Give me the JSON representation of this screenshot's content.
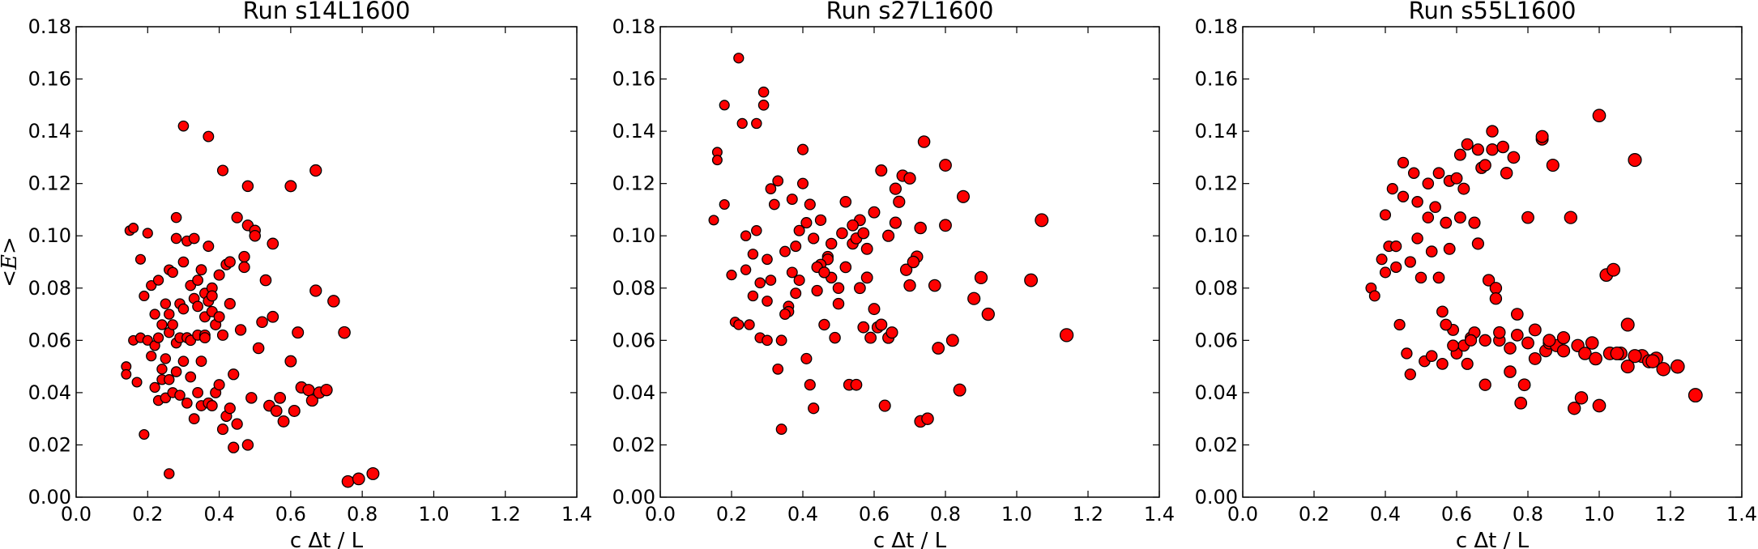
{
  "chart_data": [
    {
      "type": "scatter",
      "title": "Run s14L1600",
      "xlabel": "c Δt / L",
      "ylabel": "<E>",
      "xlim": [
        0.0,
        1.4
      ],
      "ylim": [
        0.0,
        0.18
      ],
      "xticks": [
        "0.0",
        "0.2",
        "0.4",
        "0.6",
        "0.8",
        "1.0",
        "1.2",
        "1.4"
      ],
      "yticks": [
        "0.00",
        "0.02",
        "0.04",
        "0.06",
        "0.08",
        "0.10",
        "0.12",
        "0.14",
        "0.16",
        "0.18"
      ],
      "grid": false,
      "marker_color": "#ff0000",
      "series": [
        {
          "x": [
            0.14,
            0.14,
            0.15,
            0.16,
            0.16,
            0.17,
            0.18,
            0.18,
            0.19,
            0.19,
            0.2,
            0.2,
            0.21,
            0.21,
            0.22,
            0.22,
            0.22,
            0.23,
            0.23,
            0.23,
            0.24,
            0.24,
            0.24,
            0.25,
            0.25,
            0.25,
            0.26,
            0.26,
            0.26,
            0.26,
            0.27,
            0.27,
            0.27,
            0.28,
            0.28,
            0.28,
            0.29,
            0.29,
            0.29,
            0.3,
            0.3,
            0.3,
            0.31,
            0.31,
            0.31,
            0.32,
            0.32,
            0.32,
            0.33,
            0.33,
            0.33,
            0.34,
            0.34,
            0.34,
            0.35,
            0.35,
            0.35,
            0.36,
            0.36,
            0.36,
            0.37,
            0.37,
            0.37,
            0.38,
            0.38,
            0.38,
            0.39,
            0.39,
            0.4,
            0.4,
            0.41,
            0.41,
            0.42,
            0.42,
            0.43,
            0.43,
            0.44,
            0.44,
            0.45,
            0.45,
            0.46,
            0.47,
            0.48,
            0.48,
            0.49,
            0.5,
            0.51,
            0.52,
            0.53,
            0.54,
            0.55,
            0.56,
            0.57,
            0.58,
            0.6,
            0.61,
            0.62,
            0.63,
            0.65,
            0.66,
            0.67,
            0.68,
            0.7,
            0.72,
            0.75,
            0.76,
            0.79,
            0.83,
            0.3,
            0.37,
            0.41,
            0.48,
            0.6,
            0.67,
            0.28,
            0.43,
            0.36,
            0.26,
            0.55,
            0.5,
            0.4,
            0.47,
            0.38,
            0.34
          ],
          "y": [
            0.05,
            0.047,
            0.102,
            0.06,
            0.103,
            0.044,
            0.061,
            0.091,
            0.024,
            0.077,
            0.101,
            0.06,
            0.054,
            0.081,
            0.058,
            0.042,
            0.07,
            0.037,
            0.083,
            0.061,
            0.049,
            0.066,
            0.045,
            0.074,
            0.038,
            0.053,
            0.009,
            0.087,
            0.063,
            0.045,
            0.04,
            0.066,
            0.086,
            0.107,
            0.059,
            0.048,
            0.074,
            0.061,
            0.039,
            0.09,
            0.052,
            0.072,
            0.061,
            0.036,
            0.098,
            0.081,
            0.06,
            0.046,
            0.03,
            0.076,
            0.099,
            0.062,
            0.04,
            0.073,
            0.087,
            0.052,
            0.035,
            0.078,
            0.069,
            0.062,
            0.075,
            0.036,
            0.096,
            0.08,
            0.071,
            0.035,
            0.066,
            0.04,
            0.043,
            0.085,
            0.026,
            0.062,
            0.031,
            0.089,
            0.034,
            0.09,
            0.047,
            0.019,
            0.107,
            0.028,
            0.064,
            0.092,
            0.02,
            0.104,
            0.038,
            0.102,
            0.057,
            0.067,
            0.083,
            0.035,
            0.069,
            0.033,
            0.038,
            0.029,
            0.052,
            0.033,
            0.063,
            0.042,
            0.041,
            0.037,
            0.079,
            0.04,
            0.041,
            0.075,
            0.063,
            0.006,
            0.007,
            0.009,
            0.142,
            0.138,
            0.125,
            0.119,
            0.119,
            0.125,
            0.099,
            0.074,
            0.061,
            0.07,
            0.097,
            0.1,
            0.069,
            0.088,
            0.077,
            0.083
          ]
        }
      ]
    },
    {
      "type": "scatter",
      "title": "Run s27L1600",
      "xlabel": "c Δt / L",
      "ylabel": "",
      "xlim": [
        0.0,
        1.4
      ],
      "ylim": [
        0.0,
        0.18
      ],
      "xticks": [
        "0.0",
        "0.2",
        "0.4",
        "0.6",
        "0.8",
        "1.0",
        "1.2",
        "1.4"
      ],
      "yticks": [
        "0.00",
        "0.02",
        "0.04",
        "0.06",
        "0.08",
        "0.10",
        "0.12",
        "0.14",
        "0.16",
        "0.18"
      ],
      "grid": false,
      "marker_color": "#ff0000",
      "series": [
        {
          "x": [
            0.15,
            0.16,
            0.16,
            0.18,
            0.18,
            0.2,
            0.21,
            0.22,
            0.23,
            0.24,
            0.25,
            0.26,
            0.27,
            0.28,
            0.29,
            0.3,
            0.3,
            0.31,
            0.32,
            0.33,
            0.34,
            0.35,
            0.36,
            0.37,
            0.38,
            0.39,
            0.4,
            0.41,
            0.42,
            0.43,
            0.44,
            0.45,
            0.46,
            0.47,
            0.48,
            0.49,
            0.5,
            0.51,
            0.52,
            0.53,
            0.54,
            0.55,
            0.56,
            0.57,
            0.58,
            0.59,
            0.6,
            0.61,
            0.62,
            0.63,
            0.64,
            0.65,
            0.66,
            0.67,
            0.68,
            0.69,
            0.7,
            0.72,
            0.73,
            0.74,
            0.75,
            0.77,
            0.78,
            0.8,
            0.82,
            0.84,
            0.85,
            0.88,
            0.9,
            0.92,
            1.04,
            1.07,
            1.14,
            0.22,
            0.29,
            0.3,
            0.27,
            0.24,
            0.4,
            0.33,
            0.47,
            0.43,
            0.71,
            0.73,
            0.8,
            0.62,
            0.56,
            0.52,
            0.45,
            0.38,
            0.36,
            0.26,
            0.31,
            0.41,
            0.48,
            0.5,
            0.44,
            0.55,
            0.6,
            0.39,
            0.35,
            0.42,
            0.46,
            0.28,
            0.34,
            0.37,
            0.54,
            0.57,
            0.66,
            0.64,
            0.7,
            0.58
          ],
          "y": [
            0.106,
            0.132,
            0.129,
            0.112,
            0.15,
            0.085,
            0.067,
            0.168,
            0.143,
            0.1,
            0.066,
            0.077,
            0.143,
            0.061,
            0.155,
            0.091,
            0.06,
            0.083,
            0.112,
            0.049,
            0.026,
            0.094,
            0.073,
            0.086,
            0.096,
            0.102,
            0.12,
            0.053,
            0.043,
            0.034,
            0.079,
            0.106,
            0.066,
            0.092,
            0.084,
            0.061,
            0.074,
            0.101,
            0.113,
            0.043,
            0.097,
            0.043,
            0.106,
            0.065,
            0.084,
            0.061,
            0.109,
            0.065,
            0.125,
            0.035,
            0.061,
            0.063,
            0.105,
            0.113,
            0.123,
            0.087,
            0.122,
            0.092,
            0.029,
            0.136,
            0.03,
            0.081,
            0.057,
            0.127,
            0.06,
            0.041,
            0.115,
            0.076,
            0.084,
            0.07,
            0.083,
            0.106,
            0.062,
            0.066,
            0.15,
            0.075,
            0.102,
            0.087,
            0.133,
            0.121,
            0.091,
            0.099,
            0.09,
            0.103,
            0.104,
            0.066,
            0.08,
            0.088,
            0.089,
            0.078,
            0.071,
            0.093,
            0.118,
            0.105,
            0.097,
            0.08,
            0.088,
            0.099,
            0.072,
            0.083,
            0.07,
            0.112,
            0.086,
            0.082,
            0.06,
            0.114,
            0.104,
            0.101,
            0.118,
            0.1,
            0.081,
            0.095
          ]
        }
      ]
    },
    {
      "type": "scatter",
      "title": "Run s55L1600",
      "xlabel": "c Δt / L",
      "ylabel": "",
      "xlim": [
        0.0,
        1.4
      ],
      "ylim": [
        0.0,
        0.18
      ],
      "xticks": [
        "0.0",
        "0.2",
        "0.4",
        "0.6",
        "0.8",
        "1.0",
        "1.2",
        "1.4"
      ],
      "yticks": [
        "0.00",
        "0.02",
        "0.04",
        "0.06",
        "0.08",
        "0.10",
        "0.12",
        "0.14",
        "0.16",
        "0.18"
      ],
      "grid": false,
      "marker_color": "#ff0000",
      "series": [
        {
          "x": [
            0.36,
            0.37,
            0.39,
            0.4,
            0.4,
            0.41,
            0.42,
            0.43,
            0.44,
            0.45,
            0.46,
            0.47,
            0.48,
            0.49,
            0.5,
            0.51,
            0.52,
            0.53,
            0.54,
            0.55,
            0.56,
            0.57,
            0.58,
            0.59,
            0.6,
            0.61,
            0.62,
            0.63,
            0.64,
            0.65,
            0.66,
            0.67,
            0.68,
            0.69,
            0.7,
            0.71,
            0.72,
            0.74,
            0.75,
            0.76,
            0.77,
            0.78,
            0.79,
            0.8,
            0.82,
            0.84,
            0.85,
            0.86,
            0.88,
            0.9,
            0.92,
            0.94,
            0.96,
            0.98,
            1.0,
            1.02,
            1.04,
            1.06,
            1.08,
            1.1,
            1.12,
            1.14,
            1.16,
            1.18,
            1.22,
            1.27,
            1.0,
            1.1,
            0.84,
            0.7,
            0.63,
            0.66,
            0.58,
            0.45,
            0.61,
            0.52,
            0.55,
            0.68,
            0.73,
            0.8,
            0.87,
            0.93,
            1.03,
            1.08,
            0.49,
            0.6,
            0.71,
            0.62,
            0.75,
            0.82,
            0.9,
            0.56,
            0.47,
            0.43,
            0.65,
            0.77,
            0.68,
            0.57,
            0.53,
            0.72,
            0.64,
            0.59,
            0.95,
            1.05,
            1.15,
            0.99,
            0.86
          ],
          "y": [
            0.08,
            0.077,
            0.091,
            0.108,
            0.086,
            0.096,
            0.118,
            0.088,
            0.066,
            0.128,
            0.055,
            0.047,
            0.124,
            0.113,
            0.084,
            0.052,
            0.107,
            0.094,
            0.111,
            0.084,
            0.051,
            0.105,
            0.095,
            0.064,
            0.055,
            0.131,
            0.118,
            0.051,
            0.061,
            0.105,
            0.097,
            0.126,
            0.043,
            0.083,
            0.133,
            0.08,
            0.06,
            0.124,
            0.048,
            0.13,
            0.07,
            0.036,
            0.043,
            0.059,
            0.064,
            0.137,
            0.056,
            0.059,
            0.058,
            0.061,
            0.107,
            0.058,
            0.055,
            0.059,
            0.146,
            0.085,
            0.087,
            0.055,
            0.066,
            0.129,
            0.054,
            0.052,
            0.053,
            0.049,
            0.05,
            0.039,
            0.035,
            0.054,
            0.138,
            0.14,
            0.135,
            0.133,
            0.121,
            0.115,
            0.107,
            0.12,
            0.124,
            0.127,
            0.134,
            0.107,
            0.127,
            0.034,
            0.055,
            0.05,
            0.099,
            0.122,
            0.076,
            0.058,
            0.057,
            0.053,
            0.056,
            0.071,
            0.09,
            0.096,
            0.063,
            0.062,
            0.06,
            0.066,
            0.054,
            0.063,
            0.06,
            0.058,
            0.038,
            0.055,
            0.052,
            0.053,
            0.06
          ]
        }
      ]
    }
  ]
}
